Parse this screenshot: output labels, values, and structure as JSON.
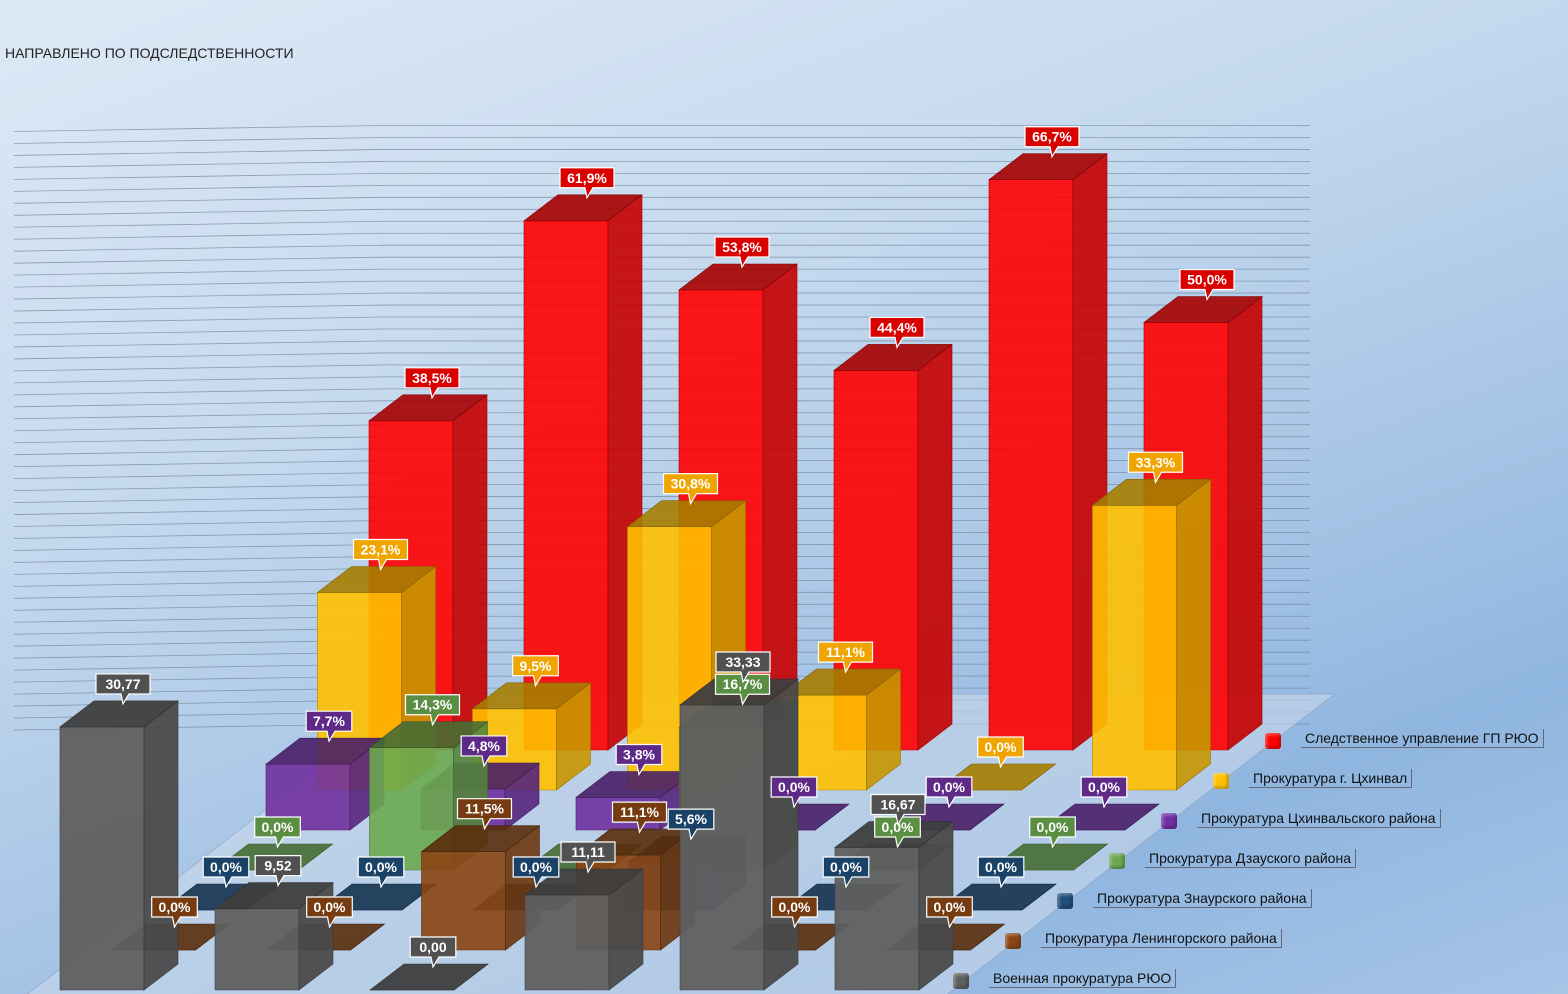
{
  "title": "НАПРАВЛЕНО ПО ПОДСЛЕДСТВЕННОСТИ",
  "chart_data": {
    "type": "bar",
    "projection": "3d-clustered-depth",
    "grid": true,
    "legend_position": "right",
    "categories": [
      "",
      "",
      "",
      "",
      "",
      ""
    ],
    "series": [
      {
        "name": "Военная прокуратура РЮО",
        "color": "#5f5f5f",
        "values": [
          30.77,
          9.52,
          0.0,
          11.11,
          33.33,
          16.67
        ],
        "labels": [
          "30,77",
          "9,52",
          "0,00",
          "11,11",
          "33,33",
          "16,67"
        ]
      },
      {
        "name": "Прокуратура Ленингорского района",
        "color": "#8b4513",
        "values": [
          0.0,
          0.0,
          11.5,
          11.1,
          0.0,
          0.0
        ],
        "labels": [
          "0,0%",
          "0,0%",
          "11,5%",
          "11,1%",
          "0,0%",
          "0,0%"
        ]
      },
      {
        "name": "Прокуратура Знаурского района",
        "color": "#1f4e79",
        "values": [
          0.0,
          0.0,
          0.0,
          5.6,
          0.0,
          0.0
        ],
        "labels": [
          "0,0%",
          "0,0%",
          "0,0%",
          "5,6%",
          "0,0%",
          "0,0%"
        ]
      },
      {
        "name": "Прокуратура Дзауского района",
        "color": "#6aa84f",
        "values": [
          0.0,
          14.3,
          0.0,
          16.7,
          0.0,
          0.0
        ],
        "labels": [
          "0,0%",
          "14,3%",
          "",
          "16,7%",
          "0,0%",
          "0,0%"
        ]
      },
      {
        "name": "Прокуратура Цхинвальского района",
        "color": "#7030a0",
        "values": [
          7.7,
          4.8,
          3.8,
          0.0,
          0.0,
          0.0
        ],
        "labels": [
          "7,7%",
          "4,8%",
          "3,8%",
          "0,0%",
          "0,0%",
          "0,0%"
        ]
      },
      {
        "name": "Прокуратура г. Цхинвал",
        "color": "#ffc000",
        "values": [
          23.1,
          9.5,
          30.8,
          11.1,
          0.0,
          33.3
        ],
        "labels": [
          "23,1%",
          "9,5%",
          "30,8%",
          "11,1%",
          "0,0%",
          "33,3%"
        ]
      },
      {
        "name": "Следственное управление ГП РЮО",
        "color": "#ff0000",
        "values": [
          38.5,
          61.9,
          53.8,
          44.4,
          66.7,
          50.0
        ],
        "labels": [
          "38,5%",
          "61,9%",
          "53,8%",
          "44,4%",
          "66,7%",
          "50,0%"
        ]
      }
    ],
    "legend_order": [
      "Следственное управление ГП РЮО",
      "Прокуратура г. Цхинвал",
      "Прокуратура Цхинвальского района",
      "Прокуратура Дзауского района",
      "Прокуратура Знаурского района",
      "Прокуратура Ленингорского района",
      "Военная прокуратура РЮО"
    ]
  }
}
